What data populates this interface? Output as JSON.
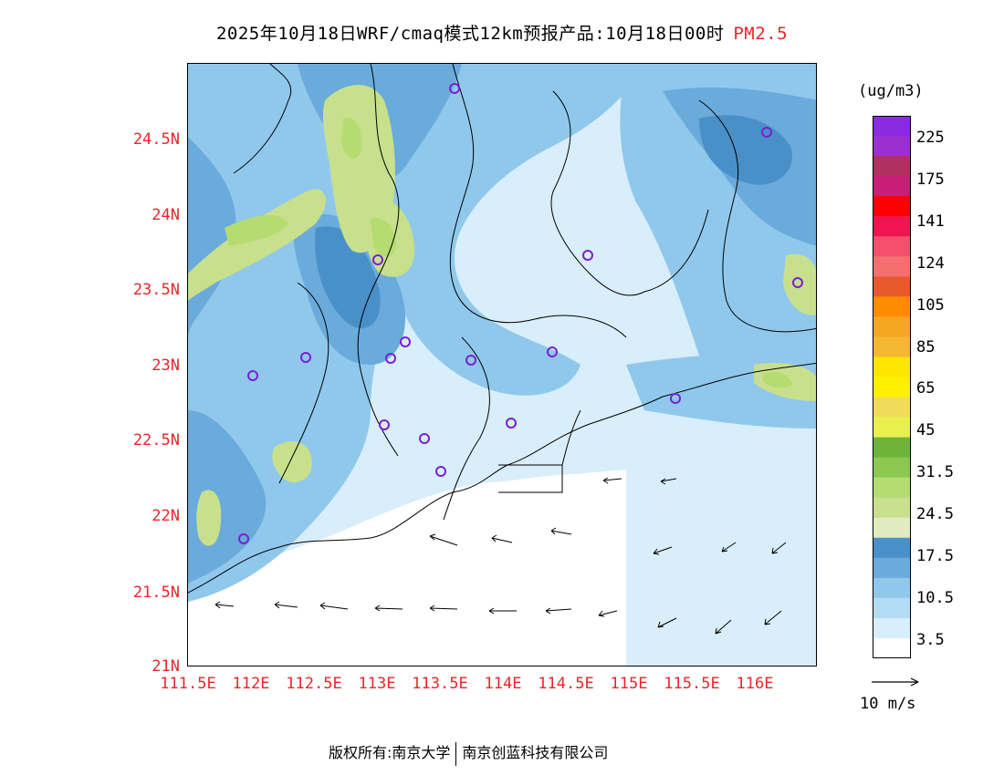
{
  "title": {
    "text": "2025年10月18日WRF/cmaq模式12km预报产品:10月18日00时",
    "pollutant": "PM2.5"
  },
  "axes": {
    "latitude_labels": [
      "24.5N",
      "24N",
      "23.5N",
      "23N",
      "22.5N",
      "22N",
      "21.5N",
      "21N"
    ],
    "longitude_labels": [
      "111.5E",
      "112E",
      "112.5E",
      "113E",
      "113.5E",
      "114E",
      "114.5E",
      "115E",
      "115.5E",
      "116E"
    ],
    "label_color": "#e8262a"
  },
  "colorbar": {
    "unit": "(ug/m3)",
    "labels": [
      "225",
      "175",
      "141",
      "124",
      "105",
      "85",
      "65",
      "45",
      "31.5",
      "24.5",
      "17.5",
      "10.5",
      "3.5"
    ],
    "colors_top_to_bottom": [
      "#8a2be2",
      "#9b30d0",
      "#b03060",
      "#c81e78",
      "#ff0000",
      "#f01450",
      "#f4506e",
      "#f47070",
      "#e85a2c",
      "#ff8c00",
      "#f5a623",
      "#f5b731",
      "#ffe600",
      "#fff000",
      "#f0dc5a",
      "#e8f050",
      "#6eb43c",
      "#8cc850",
      "#b4dc70",
      "#c8e08c",
      "#e0ecc0",
      "#4a90c8",
      "#6aabdc",
      "#90c8ec",
      "#b4dcf4",
      "#d8eefa",
      "#ffffff"
    ]
  },
  "wind_reference": {
    "label": "10 m/s"
  },
  "footer": {
    "copyright": "版权所有:南京大学",
    "company": "南京创蓝科技有限公司"
  },
  "stations_marker_color": "#7a1fd6"
}
